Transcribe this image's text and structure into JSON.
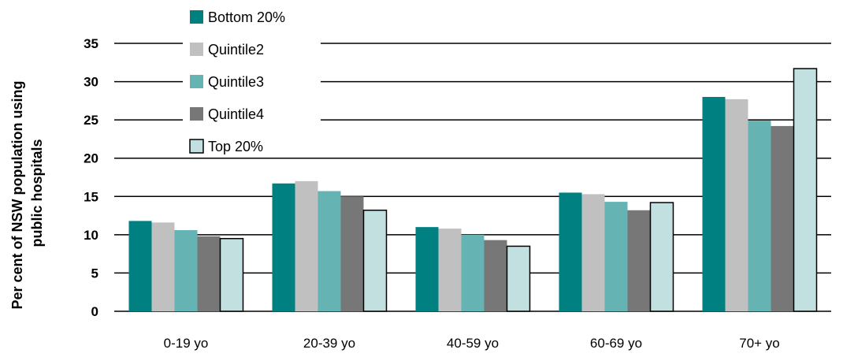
{
  "chart_data": {
    "type": "bar",
    "title": "",
    "xlabel": "",
    "ylabel_lines": [
      "Per cent of NSW population using",
      "public hospitals"
    ],
    "ylim": [
      0,
      35
    ],
    "yticks": [
      0,
      5,
      10,
      15,
      20,
      25,
      30,
      35
    ],
    "grid": true,
    "legend": "top-left",
    "categories": [
      "0-19 yo",
      "20-39 yo",
      "40-59 yo",
      "60-69 yo",
      "70+ yo"
    ],
    "series": [
      {
        "name": "Bottom 20%",
        "color": "#008080",
        "values": [
          11.8,
          16.7,
          11.0,
          15.5,
          28.0
        ]
      },
      {
        "name": "Quintile2",
        "color": "#c0c0c0",
        "values": [
          11.6,
          17.0,
          10.8,
          15.3,
          27.7
        ]
      },
      {
        "name": "Quintile3",
        "color": "#66b3b3",
        "values": [
          10.6,
          15.7,
          10.0,
          14.3,
          24.9
        ]
      },
      {
        "name": "Quintile4",
        "color": "#777777",
        "values": [
          9.8,
          15.0,
          9.3,
          13.2,
          24.2
        ]
      },
      {
        "name": "Top 20%",
        "color": "#c2e0e0",
        "values": [
          9.5,
          13.2,
          8.5,
          14.2,
          31.7
        ]
      }
    ]
  }
}
